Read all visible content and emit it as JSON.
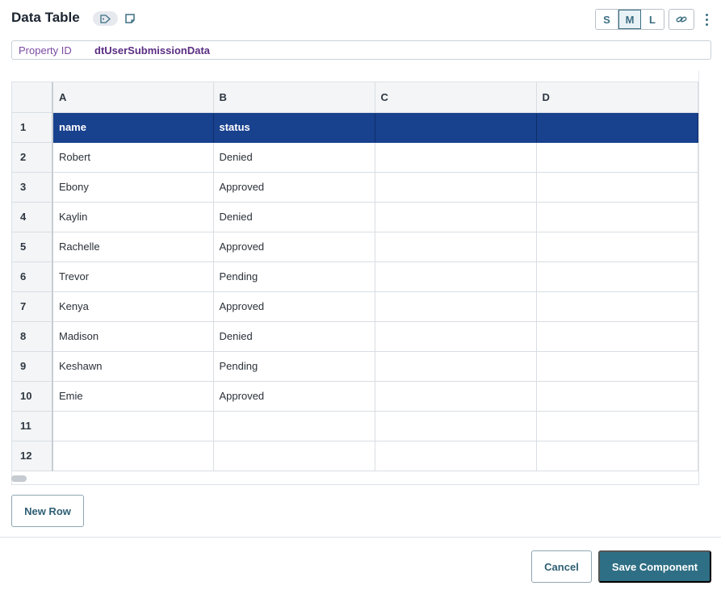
{
  "header": {
    "title": "Data Table",
    "tag_icon": "tag-icon",
    "note_icon": "note-icon",
    "sizes": [
      {
        "label": "S",
        "active": false
      },
      {
        "label": "M",
        "active": true
      },
      {
        "label": "L",
        "active": false
      }
    ],
    "link_icon": "link-icon",
    "more_icon": "more-vertical-icon"
  },
  "property": {
    "label": "Property ID",
    "value": "dtUserSubmissionData"
  },
  "grid": {
    "columns": [
      "A",
      "B",
      "C",
      "D"
    ],
    "rows": [
      {
        "num": "1",
        "cells": [
          "name",
          "status",
          "",
          ""
        ]
      },
      {
        "num": "2",
        "cells": [
          "Robert",
          "Denied",
          "",
          ""
        ]
      },
      {
        "num": "3",
        "cells": [
          "Ebony",
          "Approved",
          "",
          ""
        ]
      },
      {
        "num": "4",
        "cells": [
          "Kaylin",
          "Denied",
          "",
          ""
        ]
      },
      {
        "num": "5",
        "cells": [
          "Rachelle",
          "Approved",
          "",
          ""
        ]
      },
      {
        "num": "6",
        "cells": [
          "Trevor",
          "Pending",
          "",
          ""
        ]
      },
      {
        "num": "7",
        "cells": [
          "Kenya",
          "Approved",
          "",
          ""
        ]
      },
      {
        "num": "8",
        "cells": [
          "Madison",
          "Denied",
          "",
          ""
        ]
      },
      {
        "num": "9",
        "cells": [
          "Keshawn",
          "Pending",
          "",
          ""
        ]
      },
      {
        "num": "10",
        "cells": [
          "Emie",
          "Approved",
          "",
          ""
        ]
      },
      {
        "num": "11",
        "cells": [
          "",
          "",
          "",
          ""
        ]
      },
      {
        "num": "12",
        "cells": [
          "",
          "",
          "",
          ""
        ]
      }
    ],
    "header_row_color": "#18418e"
  },
  "actions": {
    "new_row": "New Row",
    "cancel": "Cancel",
    "save": "Save Component"
  },
  "colors": {
    "accent": "#2f6f85",
    "property_label": "#7b4aa0"
  }
}
